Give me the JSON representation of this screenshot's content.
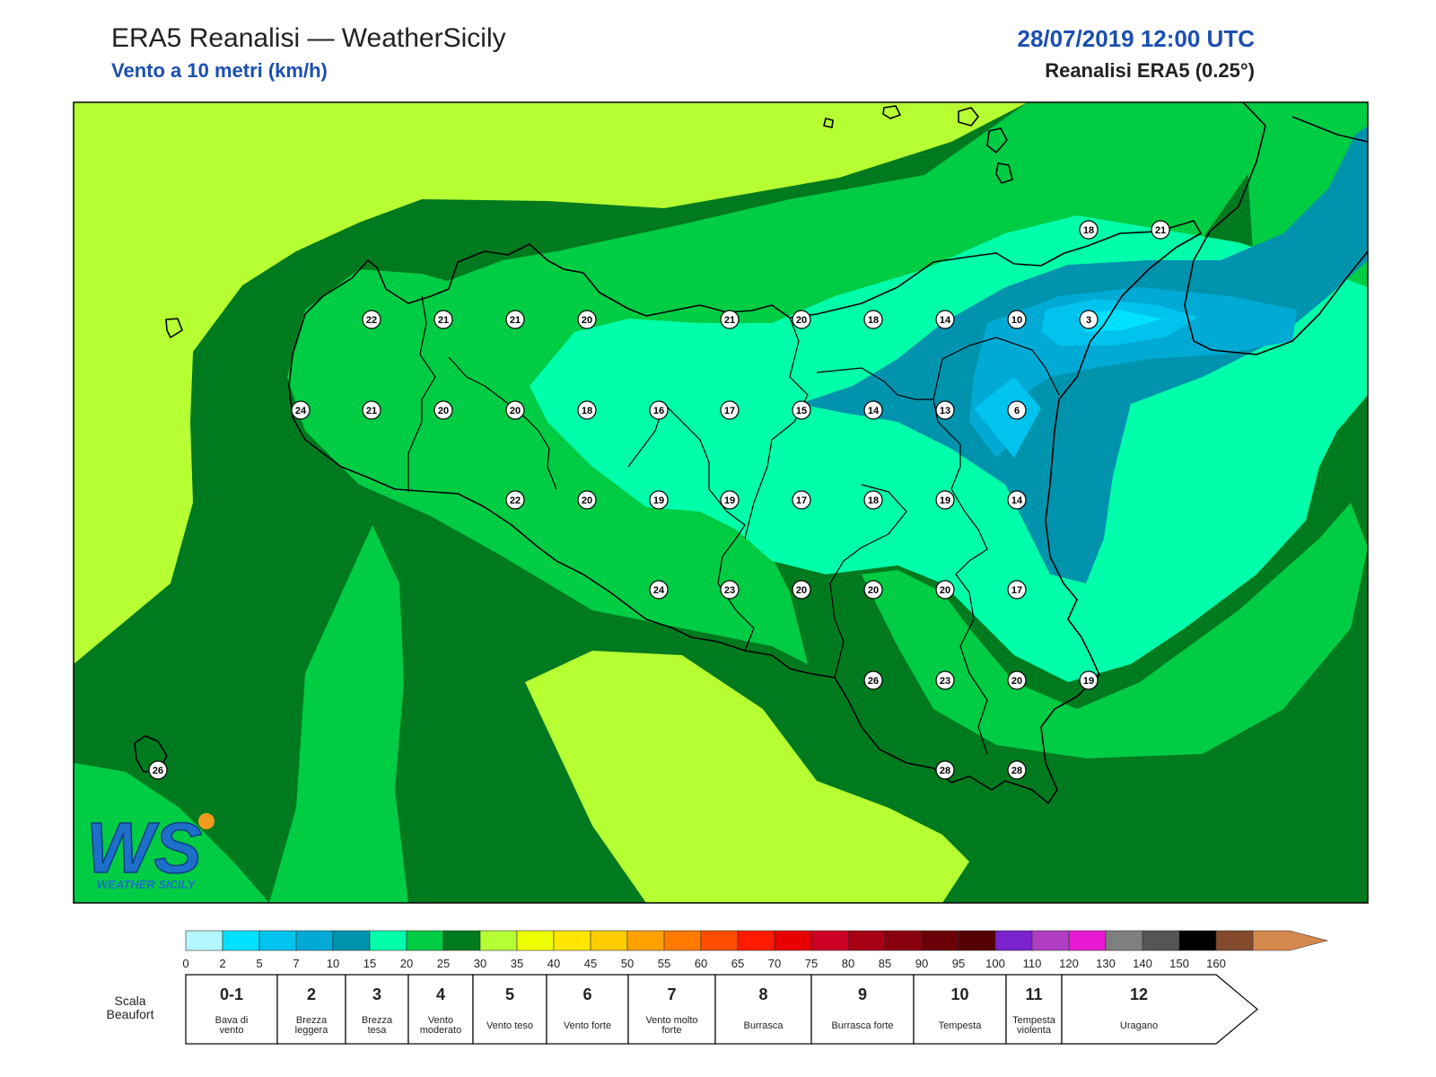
{
  "header": {
    "title": "ERA5 Reanalisi — WeatherSicily",
    "subtitle": "Vento a 10 metri (km/h)",
    "datetime": "28/07/2019 12:00 UTC",
    "model": "Reanalisi ERA5 (0.25°)"
  },
  "logo": {
    "text": "WS",
    "caption": "WEATHER SICILY"
  },
  "colors": {
    "c0_2": "#b4f7ff",
    "c2_5": "#00e1ff",
    "c5_7": "#00c3ee",
    "c7_10": "#00aad4",
    "c10_15": "#0093ad",
    "c15_20": "#00ffaa",
    "c20_25": "#00cc44",
    "c25_30": "#007a1e",
    "c30_35": "#b6ff33",
    "c35_40": "#eeff00"
  },
  "colorbar": {
    "colors": [
      "#b4f7ff",
      "#00e1ff",
      "#00c3ee",
      "#00aad4",
      "#0093ad",
      "#00ffaa",
      "#00cc44",
      "#007a1e",
      "#b6ff33",
      "#eeff00",
      "#ffe600",
      "#ffcc00",
      "#ffa200",
      "#ff7b00",
      "#ff4d00",
      "#ff1a00",
      "#e80000",
      "#cc0022",
      "#a80015",
      "#880010",
      "#6a0008",
      "#550000",
      "#7a22cc",
      "#b03ec2",
      "#e619d1",
      "#7f7f7f",
      "#555555",
      "#000000",
      "#844a2c",
      "#d4884e"
    ],
    "ticks": [
      "0",
      "2",
      "5",
      "7",
      "10",
      "15",
      "20",
      "25",
      "30",
      "35",
      "40",
      "45",
      "50",
      "55",
      "60",
      "65",
      "70",
      "75",
      "80",
      "85",
      "90",
      "95",
      "100",
      "110",
      "120",
      "130",
      "140",
      "150",
      "160"
    ]
  },
  "beaufort": {
    "label": "Scala Beaufort",
    "items": [
      {
        "num": "0-1",
        "desc": "Bava di vento"
      },
      {
        "num": "2",
        "desc": "Brezza leggera"
      },
      {
        "num": "3",
        "desc": "Brezza tesa"
      },
      {
        "num": "4",
        "desc": "Vento moderato"
      },
      {
        "num": "5",
        "desc": "Vento teso"
      },
      {
        "num": "6",
        "desc": "Vento forte"
      },
      {
        "num": "7",
        "desc": "Vento molto forte"
      },
      {
        "num": "8",
        "desc": "Burrasca"
      },
      {
        "num": "9",
        "desc": "Burrasca forte"
      },
      {
        "num": "10",
        "desc": "Tempesta"
      },
      {
        "num": "11",
        "desc": "Tempesta violenta"
      },
      {
        "num": "12",
        "desc": "Uragano"
      }
    ]
  },
  "stations": [
    "22",
    "21",
    "21",
    "20",
    "21",
    "20",
    "18",
    "14",
    "10",
    "3",
    "18",
    "21",
    "24",
    "21",
    "20",
    "20",
    "18",
    "16",
    "17",
    "15",
    "14",
    "13",
    "6",
    "22",
    "20",
    "19",
    "19",
    "17",
    "18",
    "19",
    "14",
    "24",
    "23",
    "20",
    "20",
    "20",
    "17",
    "26",
    "23",
    "20",
    "19",
    "28",
    "28",
    "26"
  ]
}
